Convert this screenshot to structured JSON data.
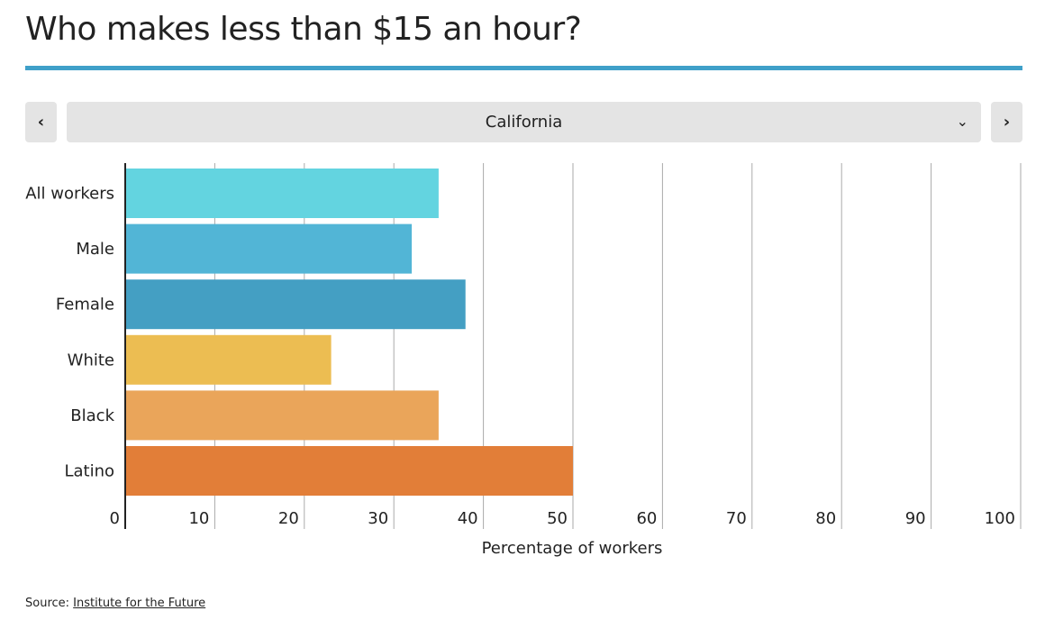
{
  "title": "Who makes less than $15 an hour?",
  "selector": {
    "value": "California",
    "prev_icon": "chevron-left-icon",
    "next_icon": "chevron-right-icon",
    "dropdown_icon": "chevron-down-icon"
  },
  "source": {
    "label": "Source:",
    "link": "Institute for the Future"
  },
  "chart_data": {
    "type": "bar",
    "orientation": "horizontal",
    "categories": [
      "All workers",
      "Male",
      "Female",
      "White",
      "Black",
      "Latino"
    ],
    "values": [
      35,
      32,
      38,
      23,
      35,
      50
    ],
    "colors": [
      "#63d4e0",
      "#52b5d6",
      "#449fc3",
      "#ecbd52",
      "#eaa55a",
      "#e27e38"
    ],
    "xlabel": "Percentage of workers",
    "xlim": [
      0,
      100
    ],
    "xticks": [
      0,
      10,
      20,
      30,
      40,
      50,
      60,
      70,
      80,
      90,
      100
    ],
    "grid": true
  }
}
